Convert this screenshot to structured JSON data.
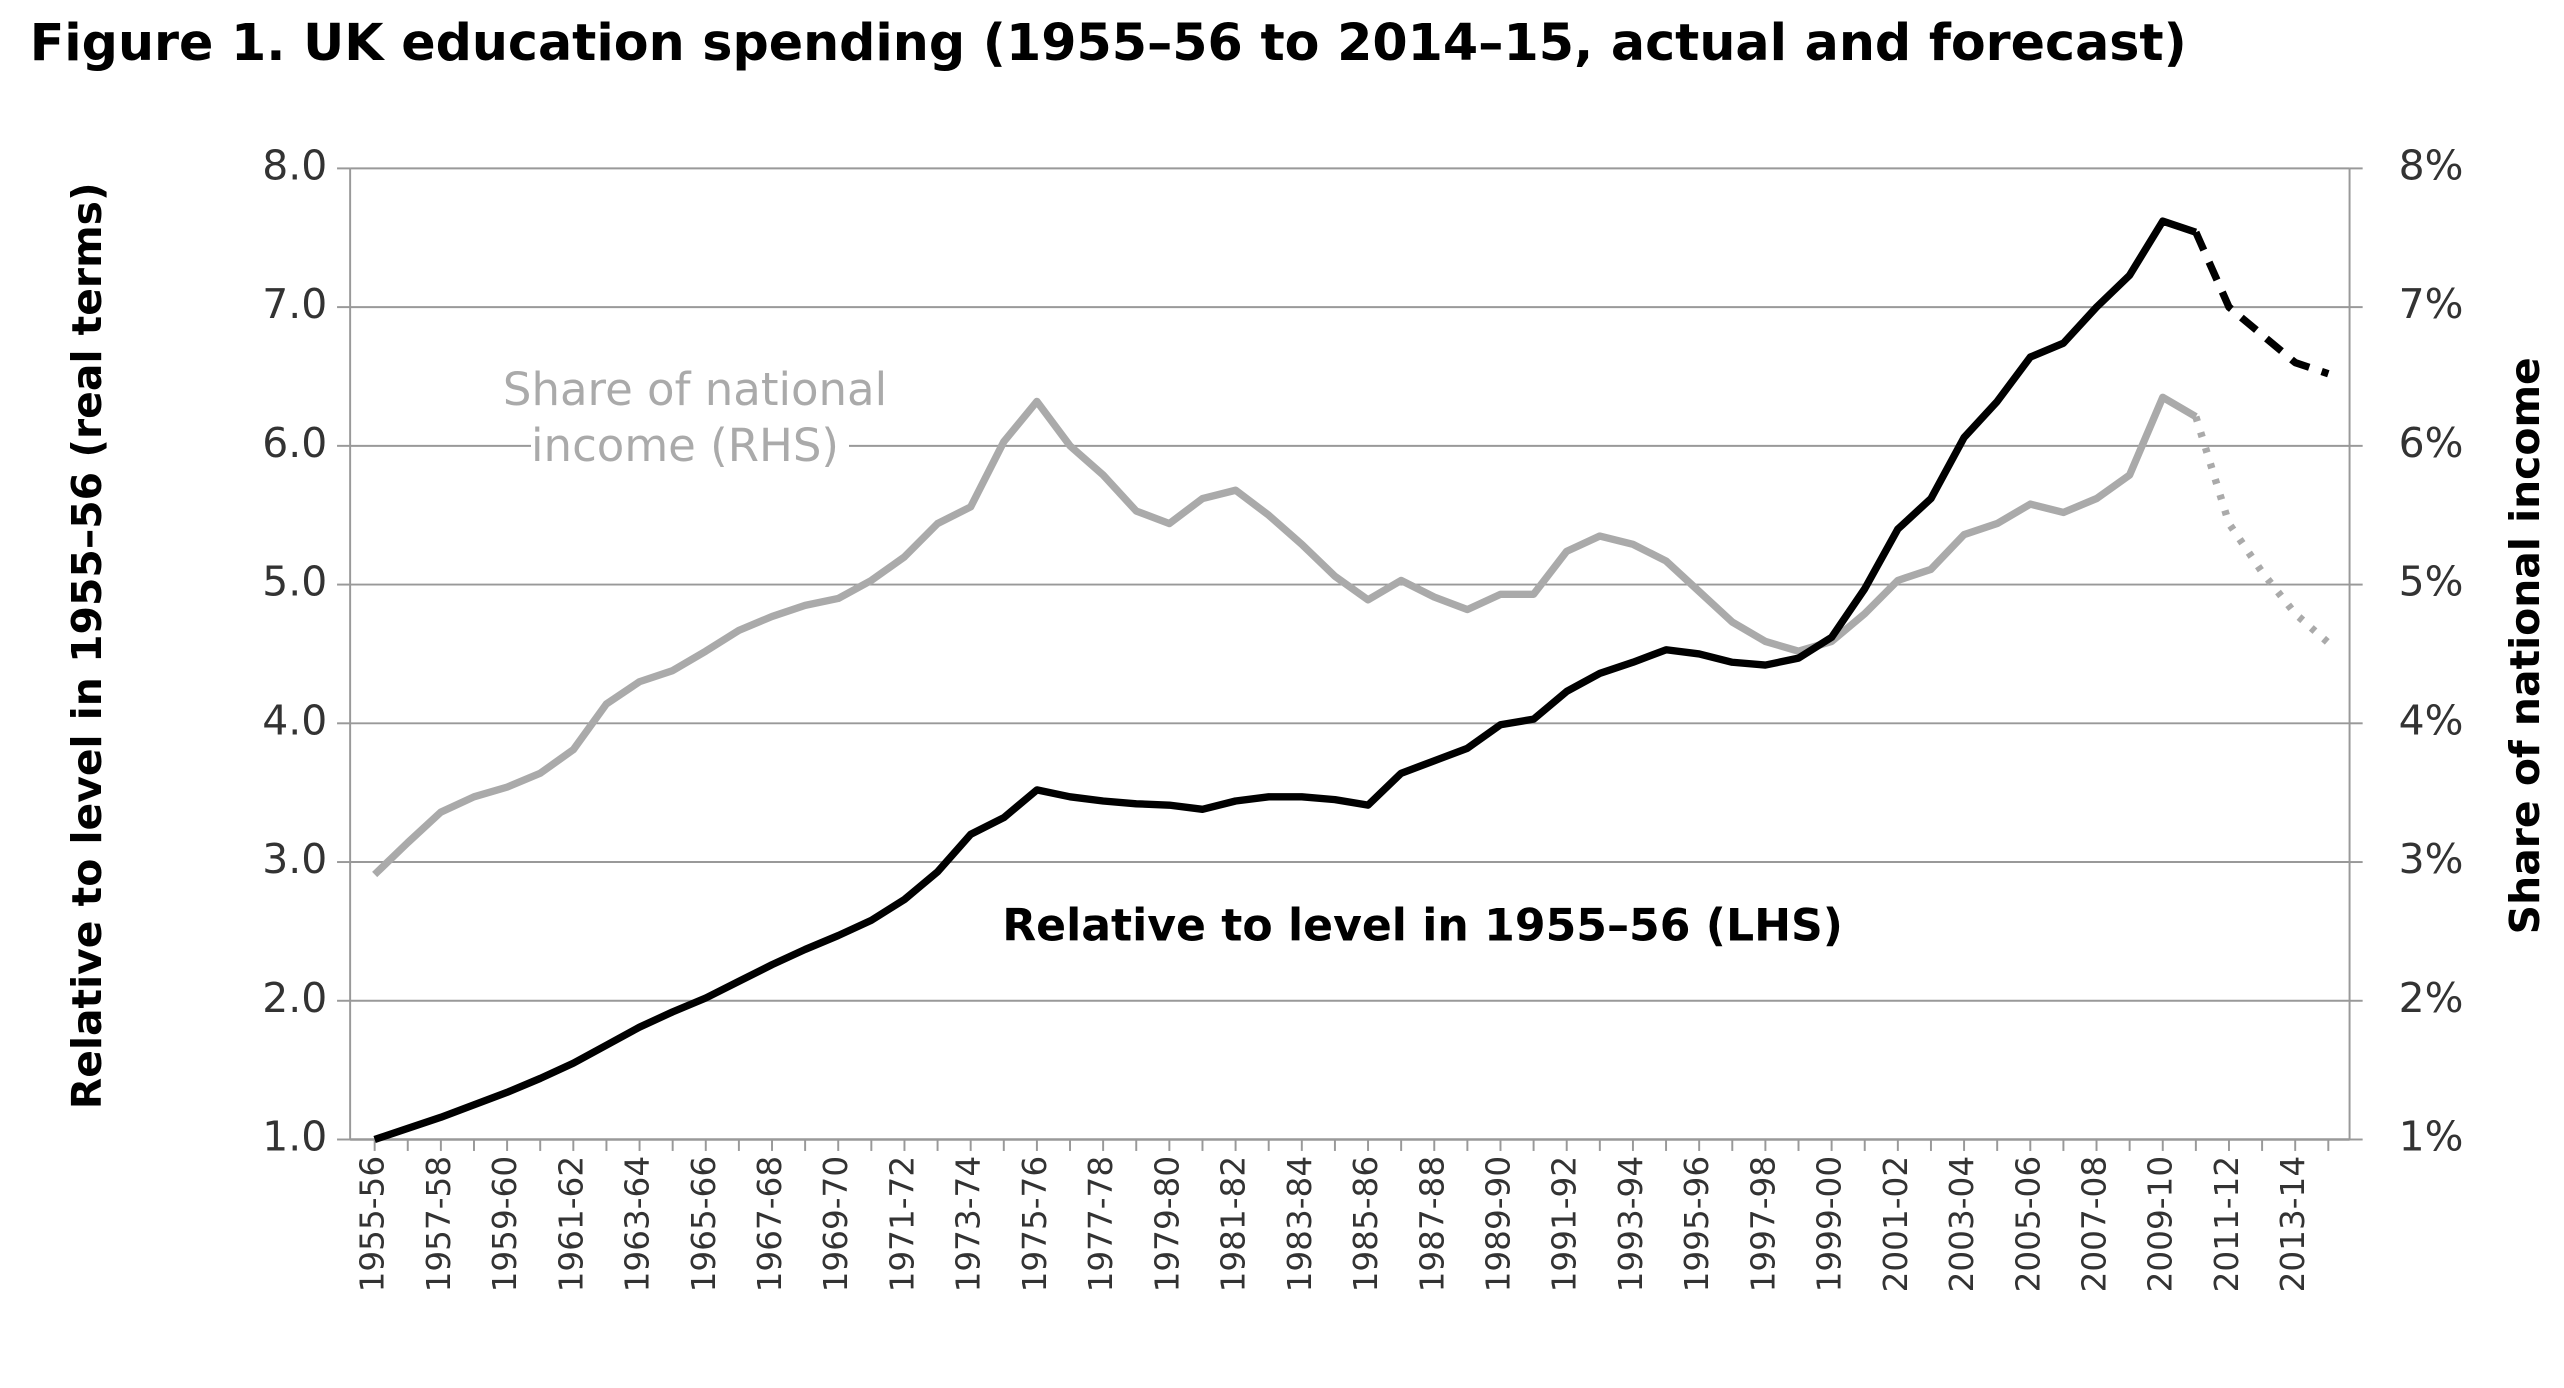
{
  "chart_data": {
    "type": "line",
    "title": "Figure 1. UK education spending (1955–56 to 2014–15, actual and forecast)",
    "y_label": "Relative to level in 1955–56 (real terms)",
    "y2_label": "Share of national income",
    "categories": [
      "1955-56",
      null,
      "1957-58",
      null,
      "1959-60",
      null,
      "1961-62",
      null,
      "1963-64",
      null,
      "1965-66",
      null,
      "1967-68",
      null,
      "1969-70",
      null,
      "1971-72",
      null,
      "1973-74",
      null,
      "1975-76",
      null,
      "1977-78",
      null,
      "1979-80",
      null,
      "1981-82",
      null,
      "1983-84",
      null,
      "1985-86",
      null,
      "1987-88",
      null,
      "1989-90",
      null,
      "1991-92",
      null,
      "1993-94",
      null,
      "1995-96",
      null,
      "1997-98",
      null,
      "1999-00",
      null,
      "2001-02",
      null,
      "2003-04",
      null,
      "2005-06",
      null,
      "2007-08",
      null,
      "2009-10",
      null,
      "2011-12",
      null,
      "2013-14",
      null
    ],
    "series": [
      {
        "name": "Relative to level in 1955–56 (LHS)",
        "color": "#000000",
        "axis": "y",
        "dash": "none",
        "values": [
          1.0,
          1.08,
          1.16,
          1.25,
          1.34,
          1.44,
          1.55,
          1.68,
          1.81,
          1.92,
          2.02,
          2.14,
          2.26,
          2.37,
          2.47,
          2.58,
          2.73,
          2.93,
          3.2,
          3.32,
          3.52,
          3.47,
          3.44,
          3.42,
          3.41,
          3.38,
          3.44,
          3.47,
          3.47,
          3.45,
          3.41,
          3.64,
          3.73,
          3.82,
          3.99,
          4.03,
          4.23,
          4.36,
          4.44,
          4.53,
          4.5,
          4.44,
          4.42,
          4.47,
          4.62,
          4.97,
          5.4,
          5.62,
          6.06,
          6.32,
          6.64,
          6.74,
          7.0,
          7.23,
          7.62,
          7.54,
          null,
          null,
          null,
          null
        ]
      },
      {
        "color": "#000000",
        "axis": "y",
        "dash": "12,8",
        "values": [
          null,
          null,
          null,
          null,
          null,
          null,
          null,
          null,
          null,
          null,
          null,
          null,
          null,
          null,
          null,
          null,
          null,
          null,
          null,
          null,
          null,
          null,
          null,
          null,
          null,
          null,
          null,
          null,
          null,
          null,
          null,
          null,
          null,
          null,
          null,
          null,
          null,
          null,
          null,
          null,
          null,
          null,
          null,
          null,
          null,
          null,
          null,
          null,
          null,
          null,
          null,
          null,
          null,
          null,
          null,
          7.54,
          7.0,
          6.8,
          6.6,
          6.52
        ]
      },
      {
        "name": "Share of national income (RHS)",
        "color": "#aaaaaa",
        "axis": "y2",
        "dash": "none",
        "values": [
          2.91,
          3.14,
          3.36,
          3.47,
          3.54,
          3.64,
          3.81,
          4.14,
          4.3,
          4.38,
          4.52,
          4.67,
          4.77,
          4.85,
          4.9,
          5.03,
          5.2,
          5.44,
          5.56,
          6.03,
          6.32,
          6.0,
          5.79,
          5.53,
          5.44,
          5.62,
          5.68,
          5.5,
          5.29,
          5.06,
          4.89,
          5.03,
          4.91,
          4.82,
          4.93,
          4.93,
          5.24,
          5.35,
          5.29,
          5.17,
          4.95,
          4.73,
          4.59,
          4.52,
          4.59,
          4.79,
          5.03,
          5.11,
          5.36,
          5.44,
          5.58,
          5.52,
          5.62,
          5.79,
          6.35,
          6.21,
          null,
          null,
          null,
          null
        ]
      },
      {
        "color": "#aaaaaa",
        "axis": "y2",
        "dash": "3,7",
        "values": [
          null,
          null,
          null,
          null,
          null,
          null,
          null,
          null,
          null,
          null,
          null,
          null,
          null,
          null,
          null,
          null,
          null,
          null,
          null,
          null,
          null,
          null,
          null,
          null,
          null,
          null,
          null,
          null,
          null,
          null,
          null,
          null,
          null,
          null,
          null,
          null,
          null,
          null,
          null,
          null,
          null,
          null,
          null,
          null,
          null,
          null,
          null,
          null,
          null,
          null,
          null,
          null,
          null,
          null,
          null,
          6.21,
          5.44,
          5.09,
          4.79,
          4.58
        ]
      }
    ],
    "ylim": [
      1,
      8
    ],
    "yticks": [
      {
        "value": 1,
        "label": "1.0"
      },
      {
        "value": 2,
        "label": "2.0"
      },
      {
        "value": 3,
        "label": "3.0"
      },
      {
        "value": 4,
        "label": "4.0"
      },
      {
        "value": 5,
        "label": "5.0"
      },
      {
        "value": 6,
        "label": "6.0"
      },
      {
        "value": 7,
        "label": "7.0"
      },
      {
        "value": 8,
        "label": "8.0"
      }
    ],
    "y2lim": [
      1,
      8
    ],
    "y2ticks": [
      {
        "value": 1,
        "label": "1%"
      },
      {
        "value": 2,
        "label": "2%"
      },
      {
        "value": 3,
        "label": "3%"
      },
      {
        "value": 4,
        "label": "4%"
      },
      {
        "value": 5,
        "label": "5%"
      },
      {
        "value": 6,
        "label": "6%"
      },
      {
        "value": 7,
        "label": "7%"
      },
      {
        "value": 8,
        "label": "8%"
      }
    ],
    "grid": true
  }
}
